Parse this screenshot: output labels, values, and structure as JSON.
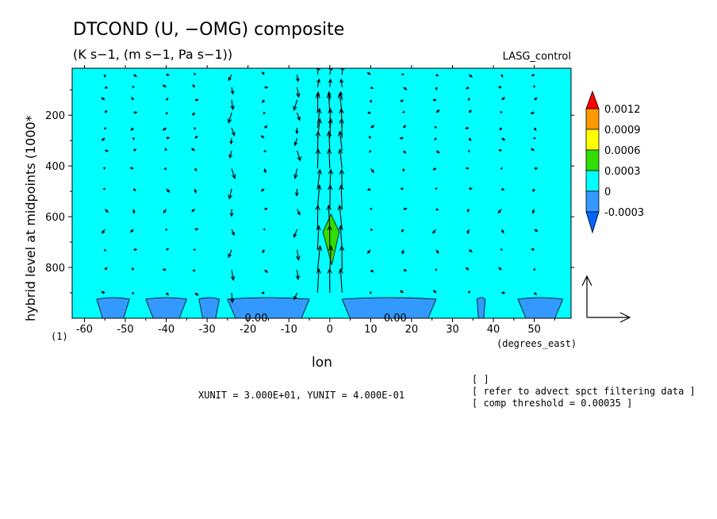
{
  "chart_data": {
    "type": "heatmap",
    "title": "DTCOND (U, −OMG) composite",
    "subtitle": "(K s−1, (m s−1, Pa s−1))",
    "case_label": "LASG_control",
    "xlabel": "lon",
    "x_units": "(degrees_east)",
    "ylabel": "hybrid level at midpoints (1000*",
    "y_scale_note": "(1)",
    "xlim": [
      -63,
      59
    ],
    "ylim": [
      1000,
      15
    ],
    "x_ticks": [
      -60,
      -50,
      -40,
      -30,
      -20,
      -10,
      0,
      10,
      20,
      30,
      40,
      50
    ],
    "x_tick_labels": [
      "-60",
      "-50",
      "-40",
      "-30",
      "-20",
      "-10",
      "0",
      "10",
      "20",
      "30",
      "40",
      "50"
    ],
    "y_ticks": [
      200,
      400,
      600,
      800
    ],
    "y_tick_labels": [
      "200",
      "400",
      "600",
      "800"
    ],
    "background_level": "0",
    "levels": [
      {
        "label": "0.0012",
        "color": "#ff9900"
      },
      {
        "label": "0.0009",
        "color": "#ffff00"
      },
      {
        "label": "0.0006",
        "color": "#33dd00"
      },
      {
        "label": "0.0003",
        "color": "#00ffff"
      },
      {
        "label": "0",
        "color": "#3399ff"
      },
      {
        "label": "-0.0003",
        "color": "#3399ff"
      }
    ],
    "colorbar_ends": {
      "top": "#ff0000",
      "bottom": "#0066ff"
    },
    "negative_regions": [
      {
        "x0": -57,
        "x1": -49
      },
      {
        "x0": -45,
        "x1": -35
      },
      {
        "x0": -32,
        "x1": -27
      },
      {
        "x0": -25,
        "x1": -5
      },
      {
        "x0": 3,
        "x1": 26
      },
      {
        "x0": 36,
        "x1": 38
      },
      {
        "x0": 46,
        "x1": 57
      }
    ],
    "positive_region": {
      "x_center": 0.3,
      "p_top": 590,
      "p_bottom": 790,
      "half_width": 2
    },
    "contour_labels": [
      "0.00",
      "0.00"
    ],
    "contour_label_positions": [
      {
        "x": -18,
        "p": 1000
      },
      {
        "x": 16,
        "p": 1000
      }
    ],
    "vector_levels": [
      40,
      90,
      140,
      190,
      250,
      290,
      340,
      410,
      490,
      570,
      650,
      730,
      810,
      900
    ],
    "vector_lons": [
      -55,
      -48,
      -40,
      -33,
      -24,
      -16,
      -8,
      -3,
      0,
      3,
      10,
      18,
      26,
      34,
      42,
      50
    ],
    "reference_vector": {
      "u": 30.0,
      "omega": 0.4
    },
    "unit_note": "XUNIT = 3.000E+01, YUNIT = 4.000E-01",
    "info_lines": [
      "[  ]",
      "[ refer to advect spct filtering data ]",
      "[ comp threshold = 0.00035 ]"
    ]
  },
  "colors": {
    "background": "#00ffff",
    "negative": "#3399ff",
    "positive": "#33dd00",
    "vector": "#000000"
  }
}
